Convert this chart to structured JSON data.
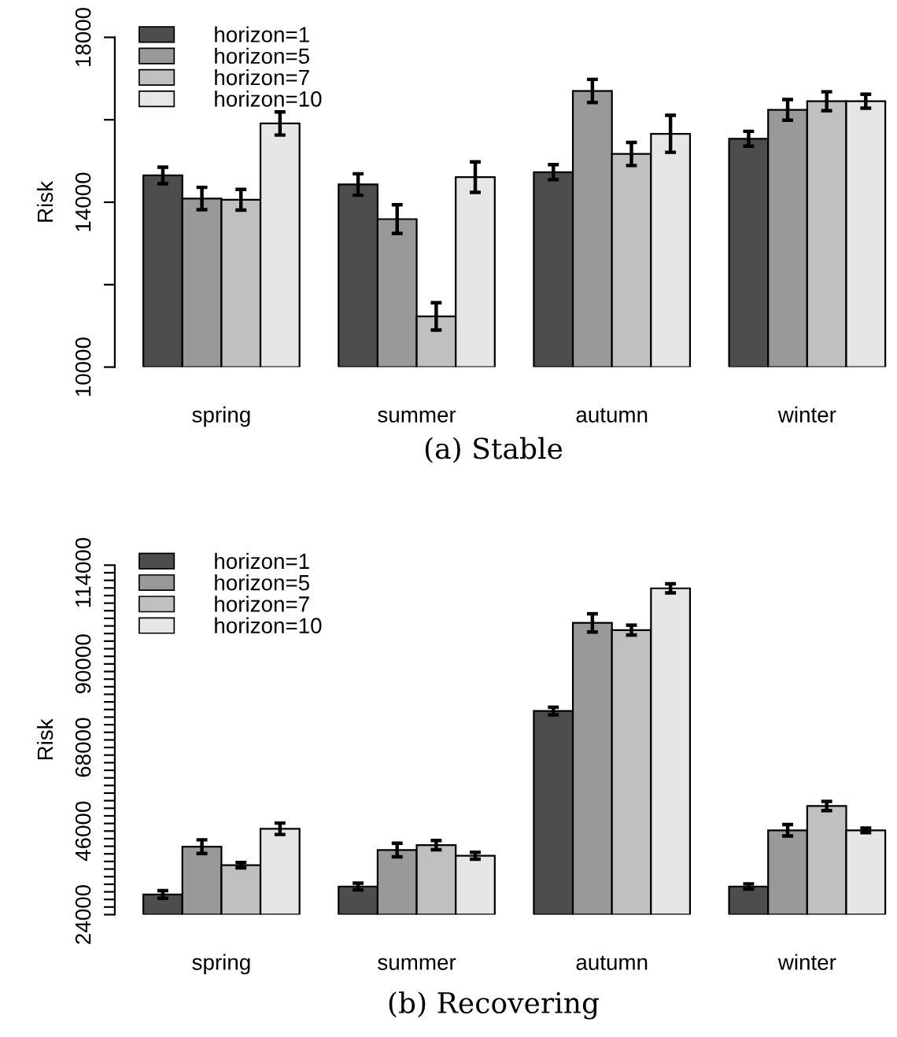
{
  "chart_data": [
    {
      "type": "bar",
      "title": "(a) Stable",
      "ylabel": "Risk",
      "categories": [
        "spring",
        "summer",
        "autumn",
        "winter"
      ],
      "ylim": [
        10000,
        18000
      ],
      "yticks": [
        10000,
        {
          "value": 12000,
          "label": null
        },
        14000,
        {
          "value": 16000,
          "label": null
        },
        18000
      ],
      "legend": "top left",
      "grid": false,
      "series": [
        {
          "name": "horizon=1",
          "color": "#4d4d4d",
          "values": [
            14650,
            14430,
            14730,
            15540
          ],
          "errors": [
            200,
            260,
            180,
            180
          ]
        },
        {
          "name": "horizon=5",
          "color": "#999999",
          "values": [
            14090,
            13590,
            16700,
            16240
          ],
          "errors": [
            270,
            350,
            280,
            250
          ]
        },
        {
          "name": "horizon=7",
          "color": "#c0c0c0",
          "values": [
            14060,
            11230,
            15170,
            16450
          ],
          "errors": [
            250,
            330,
            280,
            230
          ]
        },
        {
          "name": "horizon=10",
          "color": "#e6e6e6",
          "values": [
            15910,
            14610,
            15660,
            16450
          ],
          "errors": [
            280,
            370,
            450,
            170
          ]
        }
      ]
    },
    {
      "type": "bar",
      "title": "(b) Recovering",
      "ylabel": "Risk",
      "categories": [
        "spring",
        "summer",
        "autumn",
        "winter"
      ],
      "ylim": [
        24000,
        116000
      ],
      "yticks": [
        24000,
        {
          "value": 26000,
          "label": null
        },
        {
          "value": 28000,
          "label": null
        },
        {
          "value": 30000,
          "label": null
        },
        {
          "value": 32000,
          "label": null
        },
        {
          "value": 34000,
          "label": null
        },
        {
          "value": 36000,
          "label": null
        },
        {
          "value": 38000,
          "label": null
        },
        {
          "value": 40000,
          "label": null
        },
        {
          "value": 42000,
          "label": null
        },
        {
          "value": 44000,
          "label": null
        },
        46000,
        {
          "value": 48000,
          "label": null
        },
        {
          "value": 50000,
          "label": null
        },
        {
          "value": 52000,
          "label": null
        },
        {
          "value": 54000,
          "label": null
        },
        {
          "value": 56000,
          "label": null
        },
        {
          "value": 58000,
          "label": null
        },
        {
          "value": 60000,
          "label": null
        },
        {
          "value": 62000,
          "label": null
        },
        {
          "value": 64000,
          "label": null
        },
        {
          "value": 66000,
          "label": null
        },
        68000,
        {
          "value": 70000,
          "label": null
        },
        {
          "value": 72000,
          "label": null
        },
        {
          "value": 74000,
          "label": null
        },
        {
          "value": 76000,
          "label": null
        },
        {
          "value": 78000,
          "label": null
        },
        {
          "value": 80000,
          "label": null
        },
        {
          "value": 82000,
          "label": null
        },
        {
          "value": 84000,
          "label": null
        },
        {
          "value": 86000,
          "label": null
        },
        {
          "value": 88000,
          "label": null
        },
        90000,
        {
          "value": 92000,
          "label": null
        },
        {
          "value": 94000,
          "label": null
        },
        {
          "value": 96000,
          "label": null
        },
        {
          "value": 98000,
          "label": null
        },
        {
          "value": 100000,
          "label": null
        },
        {
          "value": 102000,
          "label": null
        },
        {
          "value": 104000,
          "label": null
        },
        {
          "value": 106000,
          "label": null
        },
        {
          "value": 108000,
          "label": null
        },
        {
          "value": 110000,
          "label": null
        },
        {
          "value": 112000,
          "label": null
        },
        114000,
        {
          "value": 116000,
          "label": null
        }
      ],
      "legend": "top left",
      "grid": false,
      "series": [
        {
          "name": "horizon=1",
          "color": "#4d4d4d",
          "values": [
            29300,
            31400,
            77600,
            31400
          ],
          "errors": [
            1000,
            900,
            1000,
            700
          ]
        },
        {
          "name": "horizon=5",
          "color": "#999999",
          "values": [
            41900,
            41000,
            100800,
            46200
          ],
          "errors": [
            1800,
            1800,
            2400,
            1500
          ]
        },
        {
          "name": "horizon=7",
          "color": "#c0c0c0",
          "values": [
            37000,
            42300,
            98900,
            52600
          ],
          "errors": [
            700,
            1200,
            1300,
            1200
          ]
        },
        {
          "name": "horizon=10",
          "color": "#e6e6e6",
          "values": [
            46600,
            39500,
            109900,
            46200
          ],
          "errors": [
            1500,
            900,
            1200,
            600
          ]
        }
      ]
    }
  ]
}
